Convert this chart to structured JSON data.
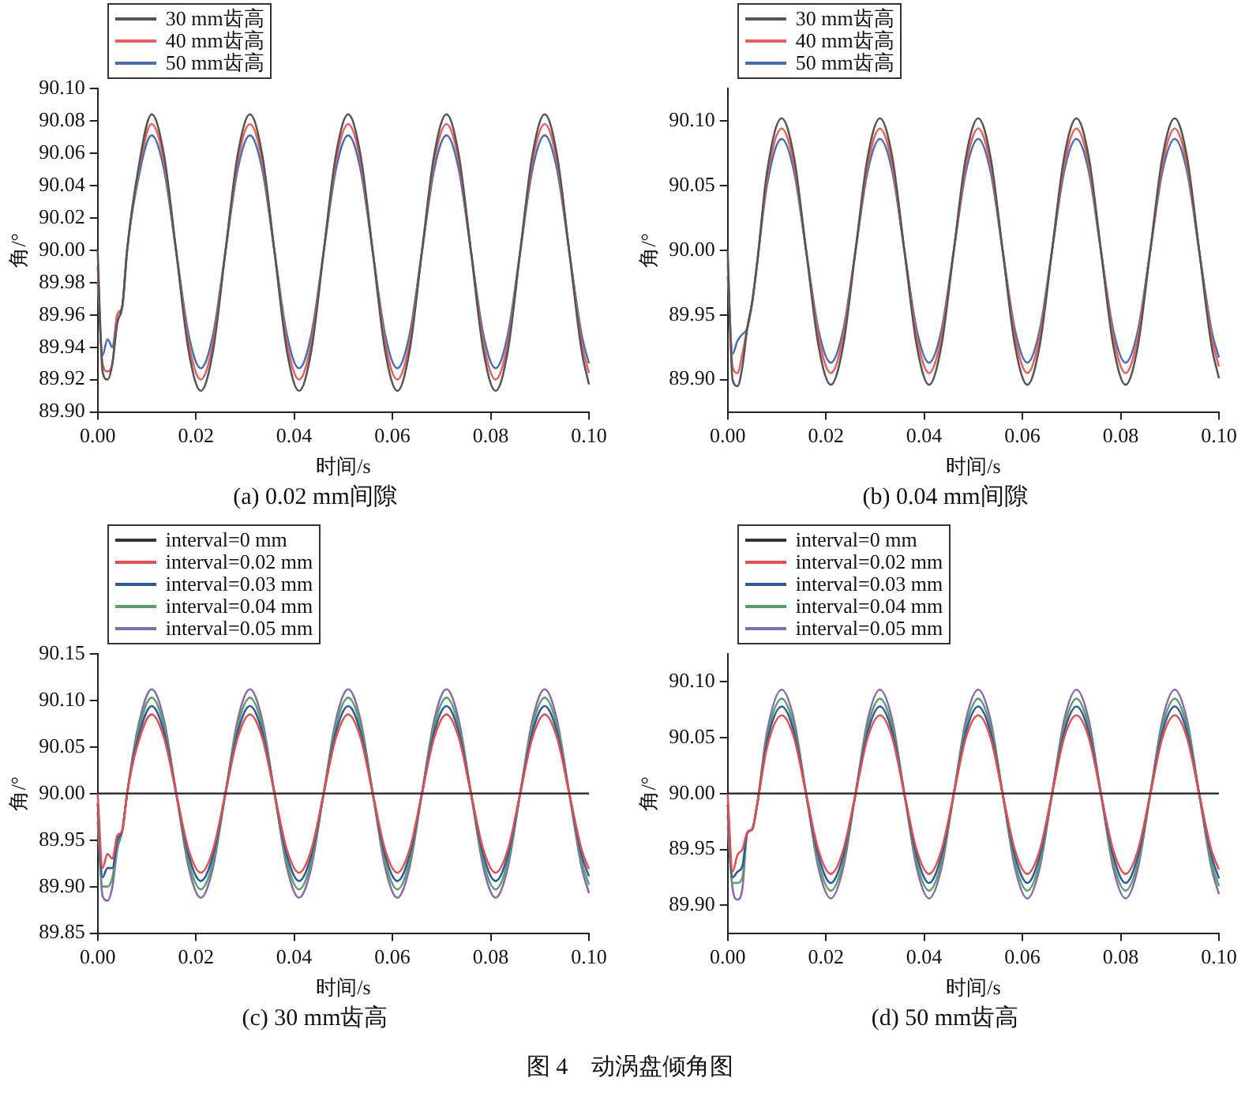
{
  "chart_data": [
    {
      "type": "line",
      "title": "(a) 0.02 mm间隙",
      "xlabel": "时间/s",
      "ylabel": "角/°",
      "legend": "top left",
      "grid": false,
      "marker": "none",
      "line_style": "solid",
      "xlim": [
        0,
        0.1
      ],
      "xticks": [
        {
          "value": 0,
          "label": "0.00"
        },
        {
          "value": 0.02,
          "label": "0.02"
        },
        {
          "value": 0.04,
          "label": "0.04"
        },
        {
          "value": 0.06,
          "label": "0.06"
        },
        {
          "value": 0.08,
          "label": "0.08"
        },
        {
          "value": 0.1,
          "label": "0.10"
        }
      ],
      "ylim": [
        89.9,
        90.1
      ],
      "yticks": [
        {
          "value": 89.9,
          "label": "89.90"
        },
        {
          "value": 89.92,
          "label": "89.92"
        },
        {
          "value": 89.94,
          "label": "89.94"
        },
        {
          "value": 89.96,
          "label": "89.96"
        },
        {
          "value": 89.98,
          "label": "89.98"
        },
        {
          "value": 90,
          "label": "90.00"
        },
        {
          "value": 90.02,
          "label": "90.02"
        },
        {
          "value": 90.04,
          "label": "90.04"
        },
        {
          "value": 90.06,
          "label": "90.06"
        },
        {
          "value": 90.08,
          "label": "90.08"
        },
        {
          "value": 90.1,
          "label": "90.10"
        }
      ],
      "x": [
        0,
        0.001,
        0.002,
        0.003,
        0.004,
        0.005,
        0.006,
        0.008,
        0.011,
        0.0135,
        0.016,
        0.0185,
        0.021,
        0.0235,
        0.026,
        0.0285,
        0.031,
        0.0335,
        0.036,
        0.0385,
        0.041,
        0.0435,
        0.046,
        0.0485,
        0.051,
        0.0535,
        0.056,
        0.0585,
        0.061,
        0.0635,
        0.066,
        0.0685,
        0.071,
        0.0735,
        0.076,
        0.0785,
        0.081,
        0.0835,
        0.086,
        0.0885,
        0.091,
        0.0935,
        0.096,
        0.0985,
        0.1
      ],
      "series": [
        {
          "name": "30 mm齿高",
          "color": "#555555",
          "values": [
            90.0,
            89.925,
            89.92,
            89.93,
            89.955,
            89.965,
            90.0,
            90.045,
            90.084,
            90.059,
            89.999,
            89.938,
            89.913,
            89.938,
            89.999,
            90.059,
            90.084,
            90.059,
            89.999,
            89.938,
            89.913,
            89.938,
            89.999,
            90.059,
            90.084,
            90.059,
            89.999,
            89.938,
            89.913,
            89.938,
            89.999,
            90.059,
            90.084,
            90.059,
            89.999,
            89.938,
            89.913,
            89.938,
            89.999,
            90.059,
            90.084,
            90.059,
            89.999,
            89.938,
            89.917
          ]
        },
        {
          "name": "40 mm齿高",
          "color": "#e8605a",
          "values": [
            89.99,
            89.93,
            89.925,
            89.93,
            89.96,
            89.965,
            90.0,
            90.043,
            90.078,
            90.055,
            89.999,
            89.943,
            89.92,
            89.943,
            89.999,
            90.055,
            90.078,
            90.055,
            89.999,
            89.943,
            89.92,
            89.943,
            89.999,
            90.055,
            90.078,
            90.055,
            89.999,
            89.943,
            89.92,
            89.943,
            89.999,
            90.055,
            90.078,
            90.055,
            89.999,
            89.943,
            89.92,
            89.943,
            89.999,
            90.055,
            90.078,
            90.055,
            89.999,
            89.943,
            89.924
          ]
        },
        {
          "name": "50 mm齿高",
          "color": "#4a6fb5",
          "values": [
            89.98,
            89.935,
            89.945,
            89.94,
            89.96,
            89.965,
            90.0,
            90.04,
            90.071,
            90.05,
            89.999,
            89.948,
            89.927,
            89.948,
            89.999,
            90.05,
            90.071,
            90.05,
            89.999,
            89.948,
            89.927,
            89.948,
            89.999,
            90.05,
            90.071,
            90.05,
            89.999,
            89.948,
            89.927,
            89.948,
            89.999,
            90.05,
            90.071,
            90.05,
            89.999,
            89.948,
            89.927,
            89.948,
            89.999,
            90.05,
            90.071,
            90.05,
            89.999,
            89.948,
            89.93
          ]
        }
      ]
    },
    {
      "type": "line",
      "title": "(b) 0.04 mm间隙",
      "xlabel": "时间/s",
      "ylabel": "角/°",
      "legend": "top left",
      "grid": false,
      "marker": "none",
      "line_style": "solid",
      "xlim": [
        0,
        0.1
      ],
      "xticks": [
        {
          "value": 0,
          "label": "0.00"
        },
        {
          "value": 0.02,
          "label": "0.02"
        },
        {
          "value": 0.04,
          "label": "0.04"
        },
        {
          "value": 0.06,
          "label": "0.06"
        },
        {
          "value": 0.08,
          "label": "0.08"
        },
        {
          "value": 0.1,
          "label": "0.10"
        }
      ],
      "ylim": [
        89.875,
        90.125
      ],
      "yticks": [
        {
          "value": 89.9,
          "label": "89.90"
        },
        {
          "value": 89.95,
          "label": "89.95"
        },
        {
          "value": 90,
          "label": "90.00"
        },
        {
          "value": 90.05,
          "label": "90.05"
        },
        {
          "value": 90.1,
          "label": "90.10"
        }
      ],
      "x": [
        0,
        0.001,
        0.002,
        0.003,
        0.004,
        0.005,
        0.006,
        0.008,
        0.011,
        0.0135,
        0.016,
        0.0185,
        0.021,
        0.0235,
        0.026,
        0.0285,
        0.031,
        0.0335,
        0.036,
        0.0385,
        0.041,
        0.0435,
        0.046,
        0.0485,
        0.051,
        0.0535,
        0.056,
        0.0585,
        0.061,
        0.0635,
        0.066,
        0.0685,
        0.071,
        0.0735,
        0.076,
        0.0785,
        0.081,
        0.0835,
        0.086,
        0.0885,
        0.091,
        0.0935,
        0.096,
        0.0985,
        0.1
      ],
      "series": [
        {
          "name": "30 mm齿高",
          "color": "#555555",
          "values": [
            90.0,
            89.9,
            89.895,
            89.91,
            89.94,
            89.96,
            89.99,
            90.06,
            90.102,
            90.072,
            89.999,
            89.926,
            89.896,
            89.926,
            89.999,
            90.072,
            90.102,
            90.072,
            89.999,
            89.926,
            89.896,
            89.926,
            89.999,
            90.072,
            90.102,
            90.072,
            89.999,
            89.926,
            89.896,
            89.926,
            89.999,
            90.072,
            90.102,
            90.072,
            89.999,
            89.926,
            89.896,
            89.926,
            89.999,
            90.072,
            90.102,
            90.072,
            89.999,
            89.926,
            89.901
          ]
        },
        {
          "name": "40 mm齿高",
          "color": "#e8605a",
          "values": [
            89.99,
            89.91,
            89.905,
            89.92,
            89.94,
            89.96,
            89.99,
            90.055,
            90.094,
            90.066,
            89.999,
            89.933,
            89.905,
            89.933,
            89.999,
            90.066,
            90.094,
            90.066,
            89.999,
            89.933,
            89.905,
            89.933,
            89.999,
            90.066,
            90.094,
            90.066,
            89.999,
            89.933,
            89.905,
            89.933,
            89.999,
            90.066,
            90.094,
            90.066,
            89.999,
            89.933,
            89.905,
            89.933,
            89.999,
            90.066,
            90.094,
            90.066,
            89.999,
            89.933,
            89.91
          ]
        },
        {
          "name": "50 mm齿高",
          "color": "#4a6fb5",
          "values": [
            89.98,
            89.92,
            89.93,
            89.935,
            89.94,
            89.96,
            89.99,
            90.05,
            90.086,
            90.061,
            89.999,
            89.938,
            89.913,
            89.938,
            89.999,
            90.061,
            90.086,
            90.061,
            89.999,
            89.938,
            89.913,
            89.938,
            89.999,
            90.061,
            90.086,
            90.061,
            89.999,
            89.938,
            89.913,
            89.938,
            89.999,
            90.061,
            90.086,
            90.061,
            89.999,
            89.938,
            89.913,
            89.938,
            89.999,
            90.061,
            90.086,
            90.061,
            89.999,
            89.938,
            89.917
          ]
        }
      ]
    },
    {
      "type": "line",
      "title": "(c) 30 mm齿高",
      "xlabel": "时间/s",
      "ylabel": "角/°",
      "legend": "top left",
      "grid": false,
      "marker": "none",
      "line_style": "solid",
      "xlim": [
        0,
        0.1
      ],
      "xticks": [
        {
          "value": 0,
          "label": "0.00"
        },
        {
          "value": 0.02,
          "label": "0.02"
        },
        {
          "value": 0.04,
          "label": "0.04"
        },
        {
          "value": 0.06,
          "label": "0.06"
        },
        {
          "value": 0.08,
          "label": "0.08"
        },
        {
          "value": 0.1,
          "label": "0.10"
        }
      ],
      "ylim": [
        89.85,
        90.15
      ],
      "yticks": [
        {
          "value": 89.85,
          "label": "89.85"
        },
        {
          "value": 89.9,
          "label": "89.90"
        },
        {
          "value": 89.95,
          "label": "89.95"
        },
        {
          "value": 90,
          "label": "90.00"
        },
        {
          "value": 90.05,
          "label": "90.05"
        },
        {
          "value": 90.1,
          "label": "90.10"
        },
        {
          "value": 90.15,
          "label": "90.15"
        }
      ],
      "x": [
        0,
        0.001,
        0.002,
        0.003,
        0.004,
        0.005,
        0.006,
        0.008,
        0.011,
        0.0135,
        0.016,
        0.0185,
        0.021,
        0.0235,
        0.026,
        0.0285,
        0.031,
        0.0335,
        0.036,
        0.0385,
        0.041,
        0.0435,
        0.046,
        0.0485,
        0.051,
        0.0535,
        0.056,
        0.0585,
        0.061,
        0.0635,
        0.066,
        0.0685,
        0.071,
        0.0735,
        0.076,
        0.0785,
        0.081,
        0.0835,
        0.086,
        0.0885,
        0.091,
        0.0935,
        0.096,
        0.0985,
        0.1
      ],
      "series": [
        {
          "name": "interval=0 mm",
          "color": "#333333",
          "values": [
            90.0,
            90.0,
            90.0,
            90.0,
            90.0,
            90.0,
            90.0,
            90.0,
            90.0,
            90.0,
            90.0,
            90.0,
            90.0,
            90.0,
            90.0,
            90.0,
            90.0,
            90.0,
            90.0,
            90.0,
            90.0,
            90.0,
            90.0,
            90.0,
            90.0,
            90.0,
            90.0,
            90.0,
            90.0,
            90.0,
            90.0,
            90.0,
            90.0,
            90.0,
            90.0,
            90.0,
            90.0,
            90.0,
            90.0,
            90.0,
            90.0,
            90.0,
            90.0,
            90.0,
            90.0
          ]
        },
        {
          "name": "interval=0.02 mm",
          "color": "#e05050",
          "values": [
            90.0,
            89.92,
            89.935,
            89.93,
            89.955,
            89.96,
            90.0,
            90.05,
            90.085,
            90.06,
            90.0,
            89.94,
            89.915,
            89.94,
            90.0,
            90.06,
            90.085,
            90.06,
            90.0,
            89.94,
            89.915,
            89.94,
            90.0,
            90.06,
            90.085,
            90.06,
            90.0,
            89.94,
            89.915,
            89.94,
            90.0,
            90.06,
            90.085,
            90.06,
            90.0,
            89.94,
            89.915,
            89.94,
            90.0,
            90.06,
            90.085,
            90.06,
            90.0,
            89.94,
            89.919
          ]
        },
        {
          "name": "interval=0.03 mm",
          "color": "#2f5a9a",
          "values": [
            89.99,
            89.91,
            89.92,
            89.92,
            89.95,
            89.96,
            90.0,
            90.055,
            90.094,
            90.066,
            90.0,
            89.934,
            89.906,
            89.934,
            90.0,
            90.066,
            90.094,
            90.066,
            90.0,
            89.934,
            89.906,
            89.934,
            90.0,
            90.066,
            90.094,
            90.066,
            90.0,
            89.934,
            89.906,
            89.934,
            90.0,
            90.066,
            90.094,
            90.066,
            90.0,
            89.934,
            89.906,
            89.934,
            90.0,
            90.066,
            90.094,
            90.066,
            90.0,
            89.934,
            89.911
          ]
        },
        {
          "name": "interval=0.04 mm",
          "color": "#5aa06a",
          "values": [
            89.98,
            89.9,
            89.9,
            89.91,
            89.945,
            89.96,
            90.0,
            90.061,
            90.103,
            90.073,
            90.0,
            89.927,
            89.897,
            89.927,
            90.0,
            90.073,
            90.103,
            90.073,
            90.0,
            89.927,
            89.897,
            89.927,
            90.0,
            90.073,
            90.103,
            90.073,
            90.0,
            89.927,
            89.897,
            89.927,
            90.0,
            90.073,
            90.103,
            90.073,
            90.0,
            89.927,
            89.897,
            89.927,
            90.0,
            90.073,
            90.103,
            90.073,
            90.0,
            89.927,
            89.902
          ]
        },
        {
          "name": "interval=0.05 mm",
          "color": "#8a6aaa",
          "values": [
            89.97,
            89.89,
            89.885,
            89.9,
            89.94,
            89.96,
            90.0,
            90.066,
            90.112,
            90.079,
            90.0,
            89.921,
            89.888,
            89.921,
            90.0,
            90.079,
            90.112,
            90.079,
            90.0,
            89.921,
            89.888,
            89.921,
            90.0,
            90.079,
            90.112,
            90.079,
            90.0,
            89.921,
            89.888,
            89.921,
            90.0,
            90.079,
            90.112,
            90.079,
            90.0,
            89.921,
            89.888,
            89.921,
            90.0,
            90.079,
            90.112,
            90.079,
            90.0,
            89.921,
            89.893
          ]
        }
      ]
    },
    {
      "type": "line",
      "title": "(d) 50 mm齿高",
      "xlabel": "时间/s",
      "ylabel": "角/°",
      "legend": "top left",
      "grid": false,
      "marker": "none",
      "line_style": "solid",
      "annotations": [
        "图 4　动涡盘倾角图"
      ],
      "xlim": [
        0,
        0.1
      ],
      "xticks": [
        {
          "value": 0,
          "label": "0.00"
        },
        {
          "value": 0.02,
          "label": "0.02"
        },
        {
          "value": 0.04,
          "label": "0.04"
        },
        {
          "value": 0.06,
          "label": "0.06"
        },
        {
          "value": 0.08,
          "label": "0.08"
        },
        {
          "value": 0.1,
          "label": "0.10"
        }
      ],
      "ylim": [
        89.875,
        90.125
      ],
      "yticks": [
        {
          "value": 89.9,
          "label": "89.90"
        },
        {
          "value": 89.95,
          "label": "89.95"
        },
        {
          "value": 90,
          "label": "90.00"
        },
        {
          "value": 90.05,
          "label": "90.05"
        },
        {
          "value": 90.1,
          "label": "90.10"
        }
      ],
      "x": [
        0,
        0.001,
        0.002,
        0.003,
        0.004,
        0.005,
        0.006,
        0.008,
        0.011,
        0.0135,
        0.016,
        0.0185,
        0.021,
        0.0235,
        0.026,
        0.0285,
        0.031,
        0.0335,
        0.036,
        0.0385,
        0.041,
        0.0435,
        0.046,
        0.0485,
        0.051,
        0.0535,
        0.056,
        0.0585,
        0.061,
        0.0635,
        0.066,
        0.0685,
        0.071,
        0.0735,
        0.076,
        0.0785,
        0.081,
        0.0835,
        0.086,
        0.0885,
        0.091,
        0.0935,
        0.096,
        0.0985,
        0.1
      ],
      "series": [
        {
          "name": "interval=0 mm",
          "color": "#333333",
          "values": [
            90.0,
            90.0,
            90.0,
            90.0,
            90.0,
            90.0,
            90.0,
            90.0,
            90.0,
            90.0,
            90.0,
            90.0,
            90.0,
            90.0,
            90.0,
            90.0,
            90.0,
            90.0,
            90.0,
            90.0,
            90.0,
            90.0,
            90.0,
            90.0,
            90.0,
            90.0,
            90.0,
            90.0,
            90.0,
            90.0,
            90.0,
            90.0,
            90.0,
            90.0,
            90.0,
            90.0,
            90.0,
            90.0,
            90.0,
            90.0,
            90.0,
            90.0,
            90.0,
            90.0,
            90.0
          ]
        },
        {
          "name": "interval=0.02 mm",
          "color": "#e05050",
          "values": [
            90.0,
            89.93,
            89.945,
            89.95,
            89.965,
            89.968,
            89.99,
            90.041,
            90.07,
            90.05,
            89.999,
            89.949,
            89.928,
            89.949,
            89.999,
            90.05,
            90.07,
            90.05,
            89.999,
            89.949,
            89.928,
            89.949,
            89.999,
            90.05,
            90.07,
            90.05,
            89.999,
            89.949,
            89.928,
            89.949,
            89.999,
            90.05,
            90.07,
            90.05,
            89.999,
            89.949,
            89.928,
            89.949,
            89.999,
            90.05,
            90.07,
            90.05,
            89.999,
            89.949,
            89.932
          ]
        },
        {
          "name": "interval=0.03 mm",
          "color": "#2f5a9a",
          "values": [
            89.99,
            89.925,
            89.93,
            89.935,
            89.965,
            89.968,
            89.99,
            90.046,
            90.078,
            90.055,
            89.999,
            89.944,
            89.92,
            89.944,
            89.999,
            90.055,
            90.078,
            90.055,
            89.999,
            89.944,
            89.92,
            89.944,
            89.999,
            90.055,
            90.078,
            90.055,
            89.999,
            89.944,
            89.92,
            89.944,
            89.999,
            90.055,
            90.078,
            90.055,
            89.999,
            89.944,
            89.92,
            89.944,
            89.999,
            90.055,
            90.078,
            90.055,
            89.999,
            89.944,
            89.924
          ]
        },
        {
          "name": "interval=0.04 mm",
          "color": "#5aa06a",
          "values": [
            89.98,
            89.92,
            89.92,
            89.925,
            89.965,
            89.968,
            89.99,
            90.05,
            90.085,
            90.06,
            89.999,
            89.938,
            89.913,
            89.938,
            89.999,
            90.06,
            90.085,
            90.06,
            89.999,
            89.938,
            89.913,
            89.938,
            89.999,
            90.06,
            90.085,
            90.06,
            89.999,
            89.938,
            89.913,
            89.938,
            89.999,
            90.06,
            90.085,
            90.06,
            89.999,
            89.938,
            89.913,
            89.938,
            89.999,
            90.06,
            90.085,
            90.06,
            89.999,
            89.938,
            89.917
          ]
        },
        {
          "name": "interval=0.05 mm",
          "color": "#8a6aaa",
          "values": [
            89.97,
            89.915,
            89.905,
            89.915,
            89.965,
            89.968,
            89.99,
            90.055,
            90.093,
            90.066,
            89.999,
            89.933,
            89.906,
            89.933,
            89.999,
            90.066,
            90.093,
            90.066,
            89.999,
            89.933,
            89.906,
            89.933,
            89.999,
            90.066,
            90.093,
            90.066,
            89.999,
            89.933,
            89.906,
            89.933,
            89.999,
            90.066,
            90.093,
            90.066,
            89.999,
            89.933,
            89.906,
            89.933,
            89.999,
            90.066,
            90.093,
            90.066,
            89.999,
            89.933,
            89.91
          ]
        }
      ]
    }
  ]
}
